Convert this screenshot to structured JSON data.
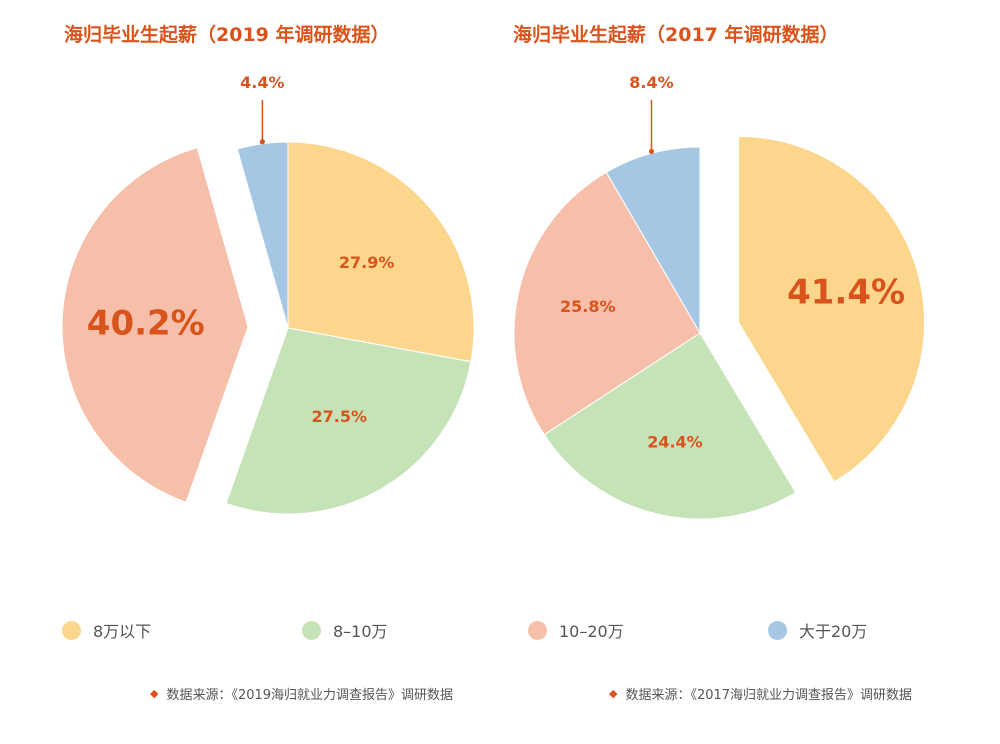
{
  "legend": [
    {
      "label": "8万以下",
      "color": "#fcd68d"
    },
    {
      "label": "8–10万",
      "color": "#c6e3b8"
    },
    {
      "label": "10–20万",
      "color": "#f6bfaa"
    },
    {
      "label": "大于20万",
      "color": "#a6c7e3"
    }
  ],
  "sources": {
    "marker": "◆",
    "left": "数据来源：《2019海归就业力调查报告》调研数据",
    "right": "数据来源：《2017海归就业力调查报告》调研数据"
  },
  "chart_data": [
    {
      "type": "pie",
      "title": "海归毕业生起薪（2019 年调研数据）",
      "categories": [
        "8万以下",
        "8–10万",
        "10–20万",
        "大于20万"
      ],
      "values": [
        27.9,
        27.5,
        40.2,
        4.4
      ],
      "labels": [
        "27.9%",
        "27.5%",
        "40.2%",
        "4.4%"
      ],
      "colors": [
        "#fcd68d",
        "#c6e3b8",
        "#f6bfaa",
        "#a6c7e3"
      ],
      "exploded": "10–20万",
      "legend_position": "bottom"
    },
    {
      "type": "pie",
      "title": "海归毕业生起薪（2017 年调研数据）",
      "categories": [
        "8万以下",
        "8–10万",
        "10–20万",
        "大于20万"
      ],
      "values": [
        41.4,
        24.4,
        25.8,
        8.4
      ],
      "labels": [
        "41.4%",
        "24.4%",
        "25.8%",
        "8.4%"
      ],
      "colors": [
        "#fcd68d",
        "#c6e3b8",
        "#f6bfaa",
        "#a6c7e3"
      ],
      "exploded": "8万以下",
      "legend_position": "bottom"
    }
  ]
}
